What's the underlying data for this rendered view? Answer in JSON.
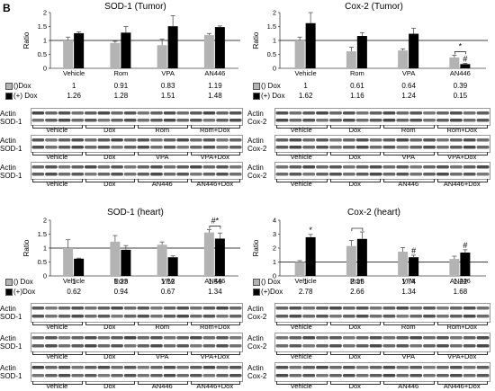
{
  "panel_label": "B",
  "colors": {
    "minus_dox": "#b3b3b3",
    "plus_dox": "#000000"
  },
  "chart_data": [
    {
      "type": "bar",
      "title": "SOD-1 (Tumor)",
      "ylabel": "Ratio",
      "ylim": [
        0,
        2
      ],
      "yticks": [
        "0",
        "0.5",
        "1",
        "1.5",
        "2"
      ],
      "reference_line": 1,
      "categories": [
        "Vehicle",
        "Rom",
        "VPA",
        "AN446"
      ],
      "series": [
        {
          "name": "()Dox",
          "values": [
            1,
            0.91,
            0.83,
            1.19
          ],
          "errors": [
            0.12,
            0.06,
            0.22,
            0.06
          ]
        },
        {
          "name": "(+) Dox",
          "values": [
            1.26,
            1.28,
            1.51,
            1.48
          ],
          "errors": [
            0.05,
            0.22,
            0.38,
            0.04
          ]
        }
      ],
      "table_labels": [
        "()Dox",
        "(+) Dox"
      ],
      "table": [
        [
          "1",
          "0.91",
          "0.83",
          "1.19"
        ],
        [
          "1.26",
          "1.28",
          "1.51",
          "1.48"
        ]
      ],
      "annotations": [],
      "brackets": []
    },
    {
      "type": "bar",
      "title": "Cox-2 (Tumor)",
      "ylabel": "Ratio",
      "ylim": [
        0,
        2
      ],
      "yticks": [
        "0",
        "0.5",
        "1",
        "1.5",
        "2"
      ],
      "reference_line": 1,
      "categories": [
        "Vehicle",
        "Rom",
        "VPA",
        "AN446"
      ],
      "series": [
        {
          "name": "() Dox",
          "values": [
            1,
            0.61,
            0.64,
            0.39
          ],
          "errors": [
            0.12,
            0.15,
            0.06,
            0.08
          ]
        },
        {
          "name": "(+) Dox",
          "values": [
            1.62,
            1.16,
            1.24,
            0.15
          ],
          "errors": [
            0.38,
            0.12,
            0.2,
            0.03
          ]
        }
      ],
      "table_labels": [
        "() Dox",
        "(+) Dox"
      ],
      "table": [
        [
          "1",
          "0.61",
          "0.64",
          "0.39"
        ],
        [
          "1.62",
          "1.16",
          "1.24",
          "0.15"
        ]
      ],
      "annotations": [
        {
          "category": 3,
          "series": 1,
          "text": "#"
        },
        {
          "category": 3,
          "series": -1,
          "text": "*"
        }
      ],
      "brackets": [
        {
          "category": 3
        }
      ]
    },
    {
      "type": "bar",
      "title": "SOD-1 (heart)",
      "ylabel": "Ratio",
      "ylim": [
        0,
        2
      ],
      "yticks": [
        "0",
        "0.5",
        "1",
        "1.5",
        "2"
      ],
      "reference_line": 1,
      "categories": [
        "Vehicle",
        "Rom",
        "VPA",
        "AN446"
      ],
      "series": [
        {
          "name": "() Dox",
          "values": [
            1,
            1.23,
            1.12,
            1.56
          ],
          "errors": [
            0.3,
            0.22,
            0.1,
            0.1
          ]
        },
        {
          "name": "(+)Dox",
          "values": [
            0.62,
            0.94,
            0.67,
            1.34
          ],
          "errors": [
            0.02,
            0.15,
            0.05,
            0.2
          ]
        }
      ],
      "table_labels": [
        "() Dox",
        "(+)Dox"
      ],
      "table": [
        [
          "1",
          "1.23",
          "1.12",
          "1.56"
        ],
        [
          "0.62",
          "0.94",
          "0.67",
          "1.34"
        ]
      ],
      "annotations": [
        {
          "category": 3,
          "series": -1,
          "text": "#*"
        }
      ],
      "brackets": [
        {
          "category": 3
        }
      ]
    },
    {
      "type": "bar",
      "title": "Cox-2 (heart)",
      "ylabel": "Ratio",
      "ylim": [
        0,
        4
      ],
      "yticks": [
        "0",
        "1",
        "2",
        "3",
        "4"
      ],
      "reference_line": 1,
      "categories": [
        "Vehicle",
        "Rom",
        "VPA",
        "AN446"
      ],
      "series": [
        {
          "name": "() Dox",
          "values": [
            1,
            2.15,
            1.74,
            1.22
          ],
          "errors": [
            0.1,
            0.4,
            0.3,
            0.2
          ]
        },
        {
          "name": "(+)Dox",
          "values": [
            2.78,
            2.66,
            1.34,
            1.68
          ],
          "errors": [
            0.2,
            0.5,
            0.15,
            0.2
          ]
        }
      ],
      "table_labels": [
        "() Dox",
        "(+)Dox"
      ],
      "table": [
        [
          "1",
          "2.15",
          "1.74",
          "1.22"
        ],
        [
          "2.78",
          "2.66",
          "1.34",
          "1.68"
        ]
      ],
      "annotations": [
        {
          "category": 0,
          "series": 1,
          "text": "*"
        },
        {
          "category": 2,
          "series": 1,
          "text": "#"
        },
        {
          "category": 3,
          "series": 1,
          "text": "#"
        }
      ],
      "brackets": [
        {
          "category": 1
        }
      ]
    }
  ],
  "blots": [
    {
      "strips": [
        {
          "label": [
            "Actin",
            "SOD-1"
          ],
          "conditions": [
            "Vehicle",
            "Dox",
            "Rom",
            "Rom+Dox"
          ]
        },
        {
          "label": [
            "Actin",
            "SOD-1"
          ],
          "conditions": [
            "Vehicle",
            "Dox",
            "VPA",
            "VPA+Dox"
          ]
        },
        {
          "label": [
            "Actin",
            "SOD-1"
          ],
          "conditions": [
            "Vehicle",
            "Dox",
            "AN446",
            "AN446+Dox"
          ]
        }
      ]
    },
    {
      "strips": [
        {
          "label": [
            "Actin",
            "Cox-2"
          ],
          "conditions": [
            "Vehicle",
            "Dox",
            "Rom",
            "Rom+Dox"
          ]
        },
        {
          "label": [
            "Actin",
            "Cox-2"
          ],
          "conditions": [
            "Vehicle",
            "Dox",
            "VPA",
            "VPA+Dox"
          ]
        },
        {
          "label": [
            "Actin",
            "Cox-2"
          ],
          "conditions": [
            "Vehicle",
            "Dox",
            "AN446",
            "AN446+Dox"
          ]
        }
      ]
    },
    {
      "strips": [
        {
          "label": [
            "Actin",
            "SOD-1"
          ],
          "conditions": [
            "Vehicle",
            "Dox",
            "Rom",
            "Rom+Dox"
          ]
        },
        {
          "label": [
            "Actin",
            "SOD-1"
          ],
          "conditions": [
            "Vehicle",
            "Dox",
            "VPA",
            "VPA+Dox"
          ]
        },
        {
          "label": [
            "Actin",
            "SOD-1"
          ],
          "conditions": [
            "Vehicle",
            "Dox",
            "AN446",
            "AN446+Dox"
          ]
        }
      ]
    },
    {
      "strips": [
        {
          "label": [
            "Actin",
            "Cox-2"
          ],
          "conditions": [
            "Vehicle",
            "Dox",
            "Rom",
            "Rom+Dox"
          ]
        },
        {
          "label": [
            "Actin",
            "Cox-2"
          ],
          "conditions": [
            "Vehicle",
            "Dox",
            "VPA",
            "VPA+Dox"
          ]
        },
        {
          "label": [
            "Actin",
            "Cox-2"
          ],
          "conditions": [
            "Vehicle",
            "Dox",
            "AN446",
            "AN446+Dox"
          ]
        }
      ]
    }
  ]
}
